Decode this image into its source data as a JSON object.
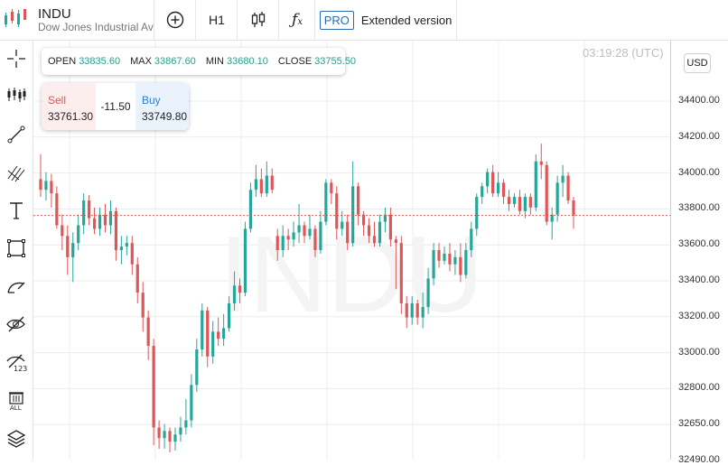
{
  "symbol": {
    "ticker": "INDU",
    "description": "Dow Jones Industrial Average"
  },
  "toolbar": {
    "timeframe": "H1",
    "pro_badge": "PRO",
    "extended_label": "Extended version"
  },
  "sidebar_tools": [
    "crosshair-icon",
    "indicators-icon",
    "trendline-icon",
    "fibonacci-icon",
    "text-icon",
    "rectangle-icon",
    "brush-icon",
    "hide-drawings-icon",
    "measure-123-icon",
    "delete-all-icon",
    "layers-icon"
  ],
  "ohlc": {
    "open_label": "OPEN",
    "open": "33835.60",
    "max_label": "MAX",
    "max": "33867.60",
    "min_label": "MIN",
    "min": "33680.10",
    "close_label": "CLOSE",
    "close": "33755.50"
  },
  "trade": {
    "sell_label": "Sell",
    "sell_price": "33761.30",
    "spread": "-11.50",
    "buy_label": "Buy",
    "buy_price": "33749.80"
  },
  "clock": "03:19:28 (UTC)",
  "currency": "USD",
  "watermark": "INDU",
  "colors": {
    "up": "#26a69a",
    "down": "#e05555",
    "sell_text": "#e05555",
    "buy_text": "#2b7fd1"
  },
  "chart_data": {
    "type": "candlestick",
    "y_ticks": [
      "34400.00",
      "34200.00",
      "34000.00",
      "33800.00",
      "33600.00",
      "33400.00",
      "33200.00",
      "33000.00",
      "32800.00",
      "32650.00",
      "32490.00"
    ],
    "current_price": 33755.5,
    "candles": [
      [
        33960,
        33900,
        34100,
        33860
      ],
      [
        33900,
        33950,
        34000,
        33840
      ],
      [
        33950,
        33880,
        33990,
        33800
      ],
      [
        33880,
        33700,
        33920,
        33680
      ],
      [
        33700,
        33640,
        33760,
        33560
      ],
      [
        33640,
        33520,
        33700,
        33420
      ],
      [
        33520,
        33600,
        33660,
        33380
      ],
      [
        33600,
        33700,
        33760,
        33560
      ],
      [
        33700,
        33840,
        33880,
        33650
      ],
      [
        33840,
        33740,
        33870,
        33700
      ],
      [
        33740,
        33680,
        33800,
        33650
      ],
      [
        33680,
        33760,
        33800,
        33640
      ],
      [
        33760,
        33700,
        33820,
        33660
      ],
      [
        33700,
        33780,
        33840,
        33650
      ],
      [
        33780,
        33560,
        33800,
        33500
      ],
      [
        33560,
        33580,
        33640,
        33480
      ],
      [
        33580,
        33600,
        33640,
        33530
      ],
      [
        33600,
        33480,
        33640,
        33420
      ],
      [
        33480,
        33320,
        33520,
        33260
      ],
      [
        33320,
        33180,
        33380,
        33100
      ],
      [
        33180,
        33020,
        33220,
        32940
      ],
      [
        33020,
        32560,
        33060,
        32460
      ],
      [
        32560,
        32500,
        32600,
        32440
      ],
      [
        32500,
        32540,
        32580,
        32440
      ],
      [
        32540,
        32480,
        32560,
        32420
      ],
      [
        32480,
        32520,
        32560,
        32430
      ],
      [
        32520,
        32560,
        32620,
        32480
      ],
      [
        32560,
        32600,
        32720,
        32520
      ],
      [
        32600,
        32800,
        32860,
        32560
      ],
      [
        32800,
        33000,
        33060,
        32760
      ],
      [
        33000,
        33220,
        33260,
        32960
      ],
      [
        33220,
        32960,
        33240,
        32900
      ],
      [
        32960,
        33100,
        33160,
        32920
      ],
      [
        33100,
        33060,
        33180,
        33020
      ],
      [
        33060,
        33120,
        33200,
        33020
      ],
      [
        33120,
        33260,
        33300,
        33100
      ],
      [
        33260,
        33360,
        33440,
        33220
      ],
      [
        33360,
        33320,
        33400,
        33260
      ],
      [
        33320,
        33680,
        33720,
        33300
      ],
      [
        33680,
        33900,
        33940,
        33660
      ],
      [
        33900,
        33960,
        34040,
        33860
      ],
      [
        33960,
        33880,
        34020,
        33860
      ],
      [
        33880,
        33980,
        34060,
        33860
      ],
      [
        33980,
        33900,
        34020,
        33880
      ],
      [
        33640,
        33560,
        33680,
        33500
      ],
      [
        33560,
        33640,
        33700,
        33520
      ],
      [
        33640,
        33620,
        33680,
        33560
      ],
      [
        33620,
        33660,
        33720,
        33580
      ],
      [
        33660,
        33700,
        33820,
        33600
      ],
      [
        33700,
        33640,
        33720,
        33600
      ],
      [
        33640,
        33680,
        33760,
        33620
      ],
      [
        33680,
        33560,
        33700,
        33520
      ],
      [
        33560,
        33720,
        33780,
        33540
      ],
      [
        33720,
        33940,
        33960,
        33700
      ],
      [
        33940,
        33880,
        33960,
        33820
      ],
      [
        33880,
        33680,
        33920,
        33620
      ],
      [
        33680,
        33720,
        33780,
        33640
      ],
      [
        33720,
        33600,
        33760,
        33560
      ],
      [
        33600,
        33920,
        34060,
        33580
      ],
      [
        33920,
        33760,
        33940,
        33700
      ],
      [
        33760,
        33700,
        33780,
        33640
      ],
      [
        33700,
        33640,
        33740,
        33600
      ],
      [
        33640,
        33600,
        33720,
        33580
      ],
      [
        33600,
        33720,
        33760,
        33580
      ],
      [
        33720,
        33760,
        33800,
        33660
      ],
      [
        33760,
        33620,
        33800,
        33580
      ],
      [
        33620,
        33600,
        33640,
        33340
      ],
      [
        33600,
        33260,
        33640,
        33200
      ],
      [
        33260,
        33180,
        33300,
        33120
      ],
      [
        33180,
        33260,
        33300,
        33140
      ],
      [
        33260,
        33180,
        33280,
        33140
      ],
      [
        33180,
        33240,
        33320,
        33120
      ],
      [
        33240,
        33400,
        33460,
        33200
      ],
      [
        33400,
        33560,
        33600,
        33360
      ],
      [
        33560,
        33500,
        33600,
        33460
      ],
      [
        33500,
        33540,
        33580,
        33480
      ],
      [
        33540,
        33480,
        33600,
        33440
      ],
      [
        33480,
        33520,
        33560,
        33420
      ],
      [
        33520,
        33420,
        33600,
        33380
      ],
      [
        33420,
        33560,
        33600,
        33400
      ],
      [
        33560,
        33680,
        33720,
        33520
      ],
      [
        33680,
        33860,
        33880,
        33640
      ],
      [
        33860,
        33920,
        33940,
        33820
      ],
      [
        33920,
        34000,
        34020,
        33880
      ],
      [
        34000,
        33880,
        34040,
        33860
      ],
      [
        33880,
        33940,
        34000,
        33860
      ],
      [
        33940,
        33860,
        33960,
        33820
      ],
      [
        33860,
        33820,
        33900,
        33780
      ],
      [
        33820,
        33860,
        33880,
        33800
      ],
      [
        33860,
        33780,
        33900,
        33760
      ],
      [
        33780,
        33860,
        33880,
        33740
      ],
      [
        33860,
        33800,
        33880,
        33760
      ],
      [
        33800,
        34060,
        34100,
        33780
      ],
      [
        34060,
        34040,
        34160,
        33960
      ],
      [
        34040,
        33720,
        34060,
        33700
      ],
      [
        33720,
        33760,
        33800,
        33620
      ],
      [
        33760,
        33940,
        33980,
        33720
      ],
      [
        33940,
        33980,
        34040,
        33860
      ],
      [
        33980,
        33840,
        34000,
        33820
      ],
      [
        33840,
        33755,
        33860,
        33680
      ]
    ]
  }
}
